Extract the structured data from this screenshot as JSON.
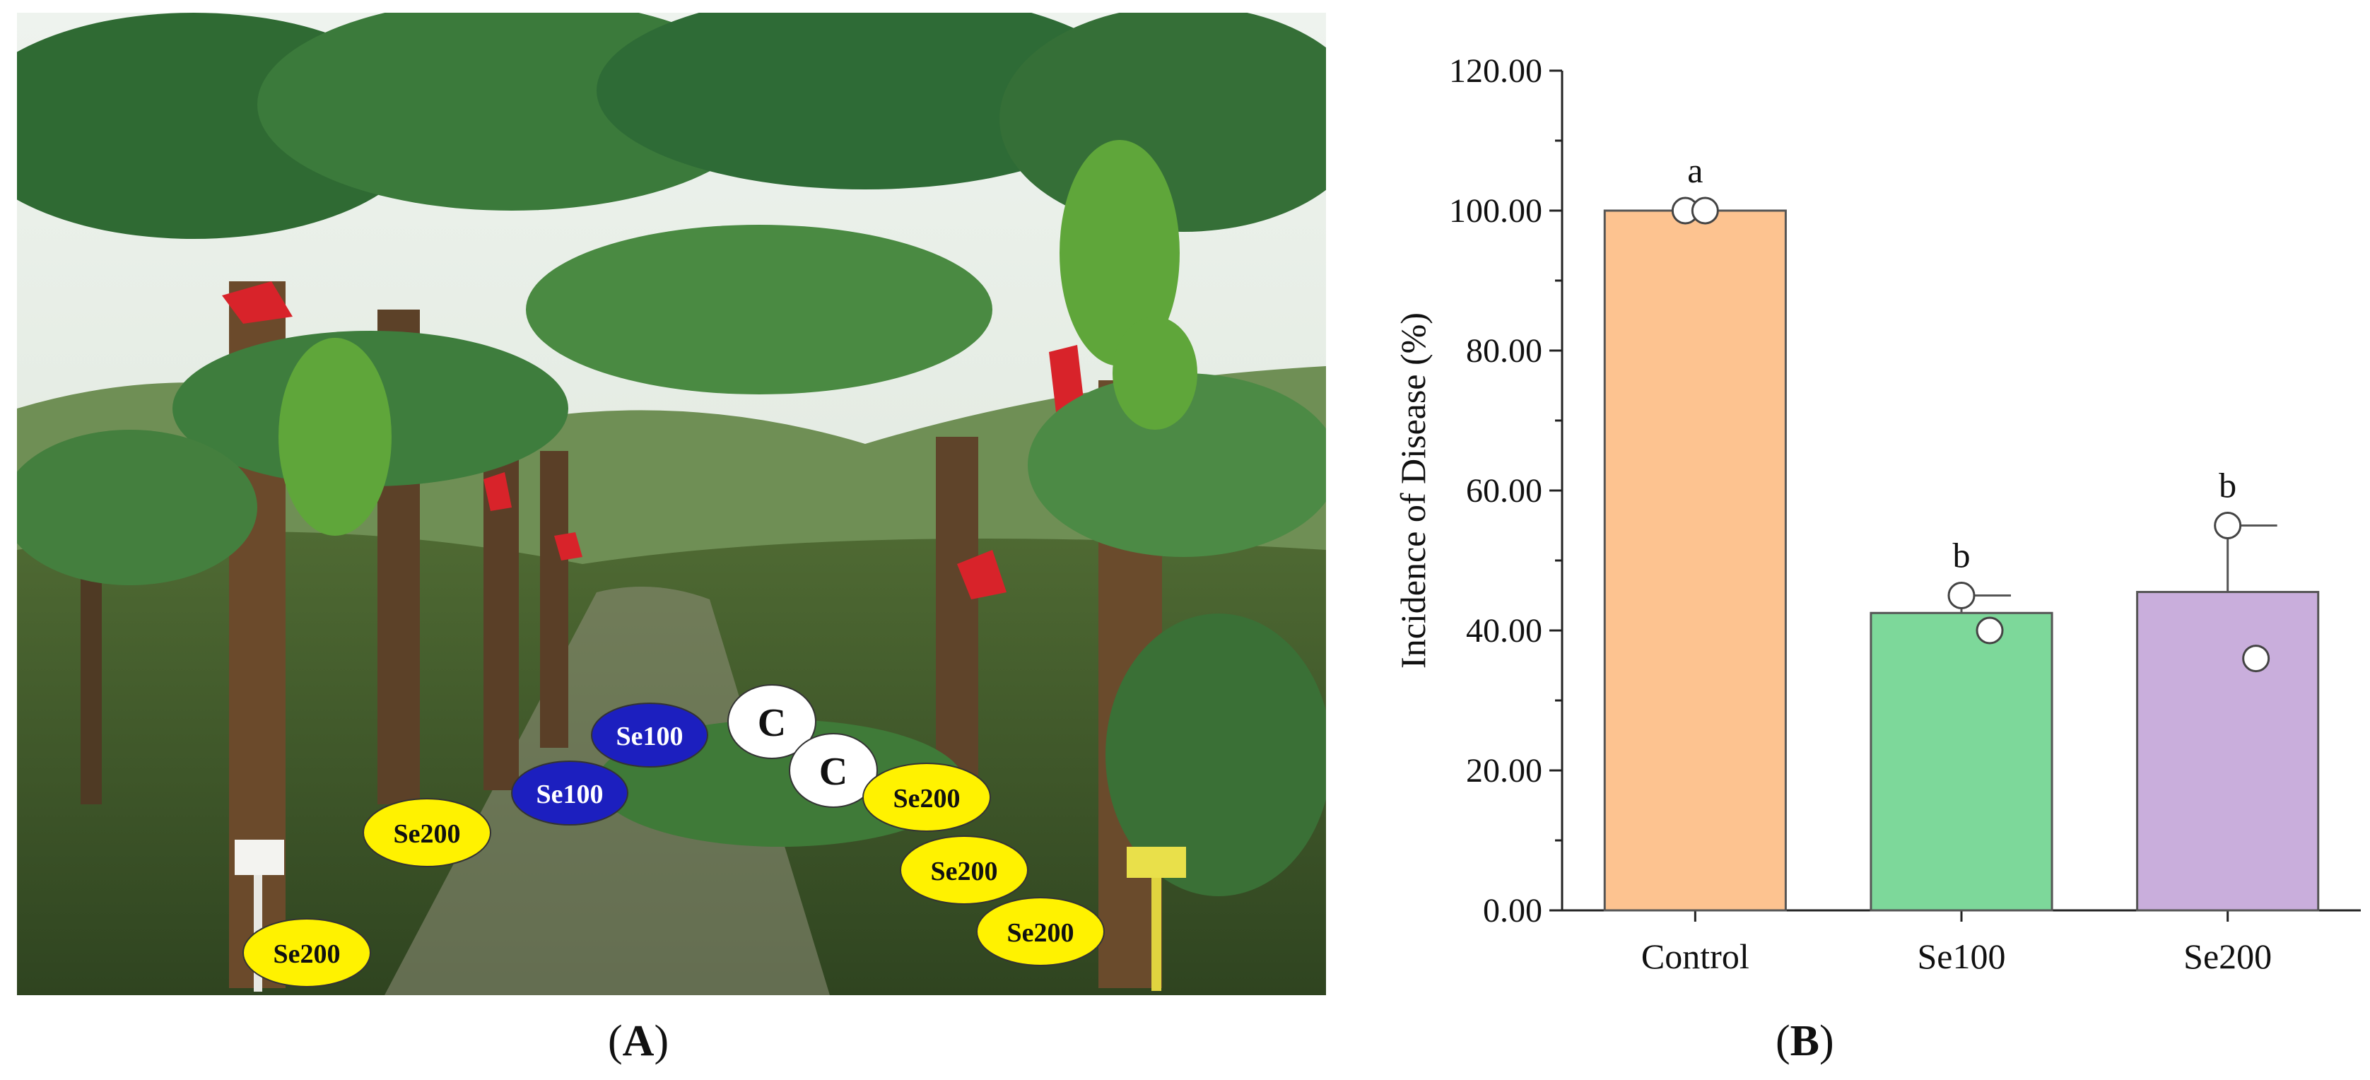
{
  "panels": {
    "a": {
      "caption_open": "(",
      "caption_letter": "A",
      "caption_close": ")"
    },
    "b": {
      "caption_open": "(",
      "caption_letter": "B",
      "caption_close": ")"
    }
  },
  "photo": {
    "labels": [
      {
        "text": "Se100",
        "color": "#1c1fbf",
        "text_color": "#ffffff"
      },
      {
        "text": "Se100",
        "color": "#1c1fbf",
        "text_color": "#ffffff"
      },
      {
        "text": "C",
        "color": "#ffffff",
        "text_color": "#111111"
      },
      {
        "text": "C",
        "color": "#ffffff",
        "text_color": "#111111"
      },
      {
        "text": "Se200",
        "color": "#fff200",
        "text_color": "#111111"
      },
      {
        "text": "Se200",
        "color": "#fff200",
        "text_color": "#111111"
      },
      {
        "text": "Se200",
        "color": "#fff200",
        "text_color": "#111111"
      },
      {
        "text": "Se200",
        "color": "#fff200",
        "text_color": "#111111"
      },
      {
        "text": "Se200",
        "color": "#fff200",
        "text_color": "#111111"
      }
    ]
  },
  "chart_data": {
    "type": "bar",
    "categories": [
      "Control",
      "Se100",
      "Se200"
    ],
    "values": [
      100.0,
      42.5,
      45.5
    ],
    "error_upper": [
      100.0,
      45.0,
      55.0
    ],
    "points": [
      [
        100,
        100
      ],
      [
        45,
        40
      ],
      [
        55,
        36
      ]
    ],
    "significance_letters": [
      "a",
      "b",
      "b"
    ],
    "colors": [
      "#fdc390",
      "#7dd89a",
      "#c9aedc"
    ],
    "ylabel": "Incidence of Disease (%)",
    "xlabel": "",
    "ylim": [
      0,
      120
    ],
    "yticks": [
      "0.00",
      "20.00",
      "40.00",
      "60.00",
      "80.00",
      "100.00",
      "120.00"
    ],
    "grid": false,
    "legend": "none"
  }
}
